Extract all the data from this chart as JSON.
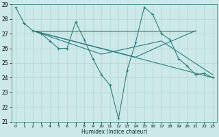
{
  "xlabel": "Humidex (Indice chaleur)",
  "xlim": [
    -0.5,
    23.5
  ],
  "ylim": [
    21,
    29
  ],
  "yticks": [
    21,
    22,
    23,
    24,
    25,
    26,
    27,
    28,
    29
  ],
  "xticks": [
    0,
    1,
    2,
    3,
    4,
    5,
    6,
    7,
    8,
    9,
    10,
    11,
    12,
    13,
    14,
    15,
    16,
    17,
    18,
    19,
    20,
    21,
    22,
    23
  ],
  "bg_color": "#cce8e8",
  "grid_color": "#b0d4d4",
  "line_color": "#2d7d7d",
  "series": {
    "zigzag": {
      "x": [
        0,
        1,
        2,
        3,
        4,
        5,
        6,
        7,
        8,
        9,
        10,
        11,
        12,
        13,
        14,
        15,
        16,
        17,
        18,
        19,
        20,
        21,
        22,
        23
      ],
      "y": [
        28.8,
        27.7,
        27.2,
        27.0,
        26.5,
        26.0,
        26.0,
        27.8,
        26.6,
        25.3,
        24.2,
        23.5,
        21.2,
        24.5,
        26.4,
        28.8,
        28.3,
        27.0,
        26.6,
        25.3,
        24.8,
        24.2,
        24.3,
        24.0
      ]
    },
    "hline": {
      "x": [
        2,
        21
      ],
      "y": [
        27.2,
        27.2
      ]
    },
    "diag1": {
      "x": [
        2,
        6,
        10,
        14,
        17,
        21
      ],
      "y": [
        27.2,
        26.6,
        26.0,
        25.4,
        26.2,
        27.2
      ]
    },
    "diag2": {
      "x": [
        2,
        23
      ],
      "y": [
        27.2,
        24.0
      ]
    },
    "diag3": {
      "x": [
        2,
        10,
        17,
        23
      ],
      "y": [
        27.2,
        25.6,
        26.5,
        24.2
      ]
    }
  }
}
